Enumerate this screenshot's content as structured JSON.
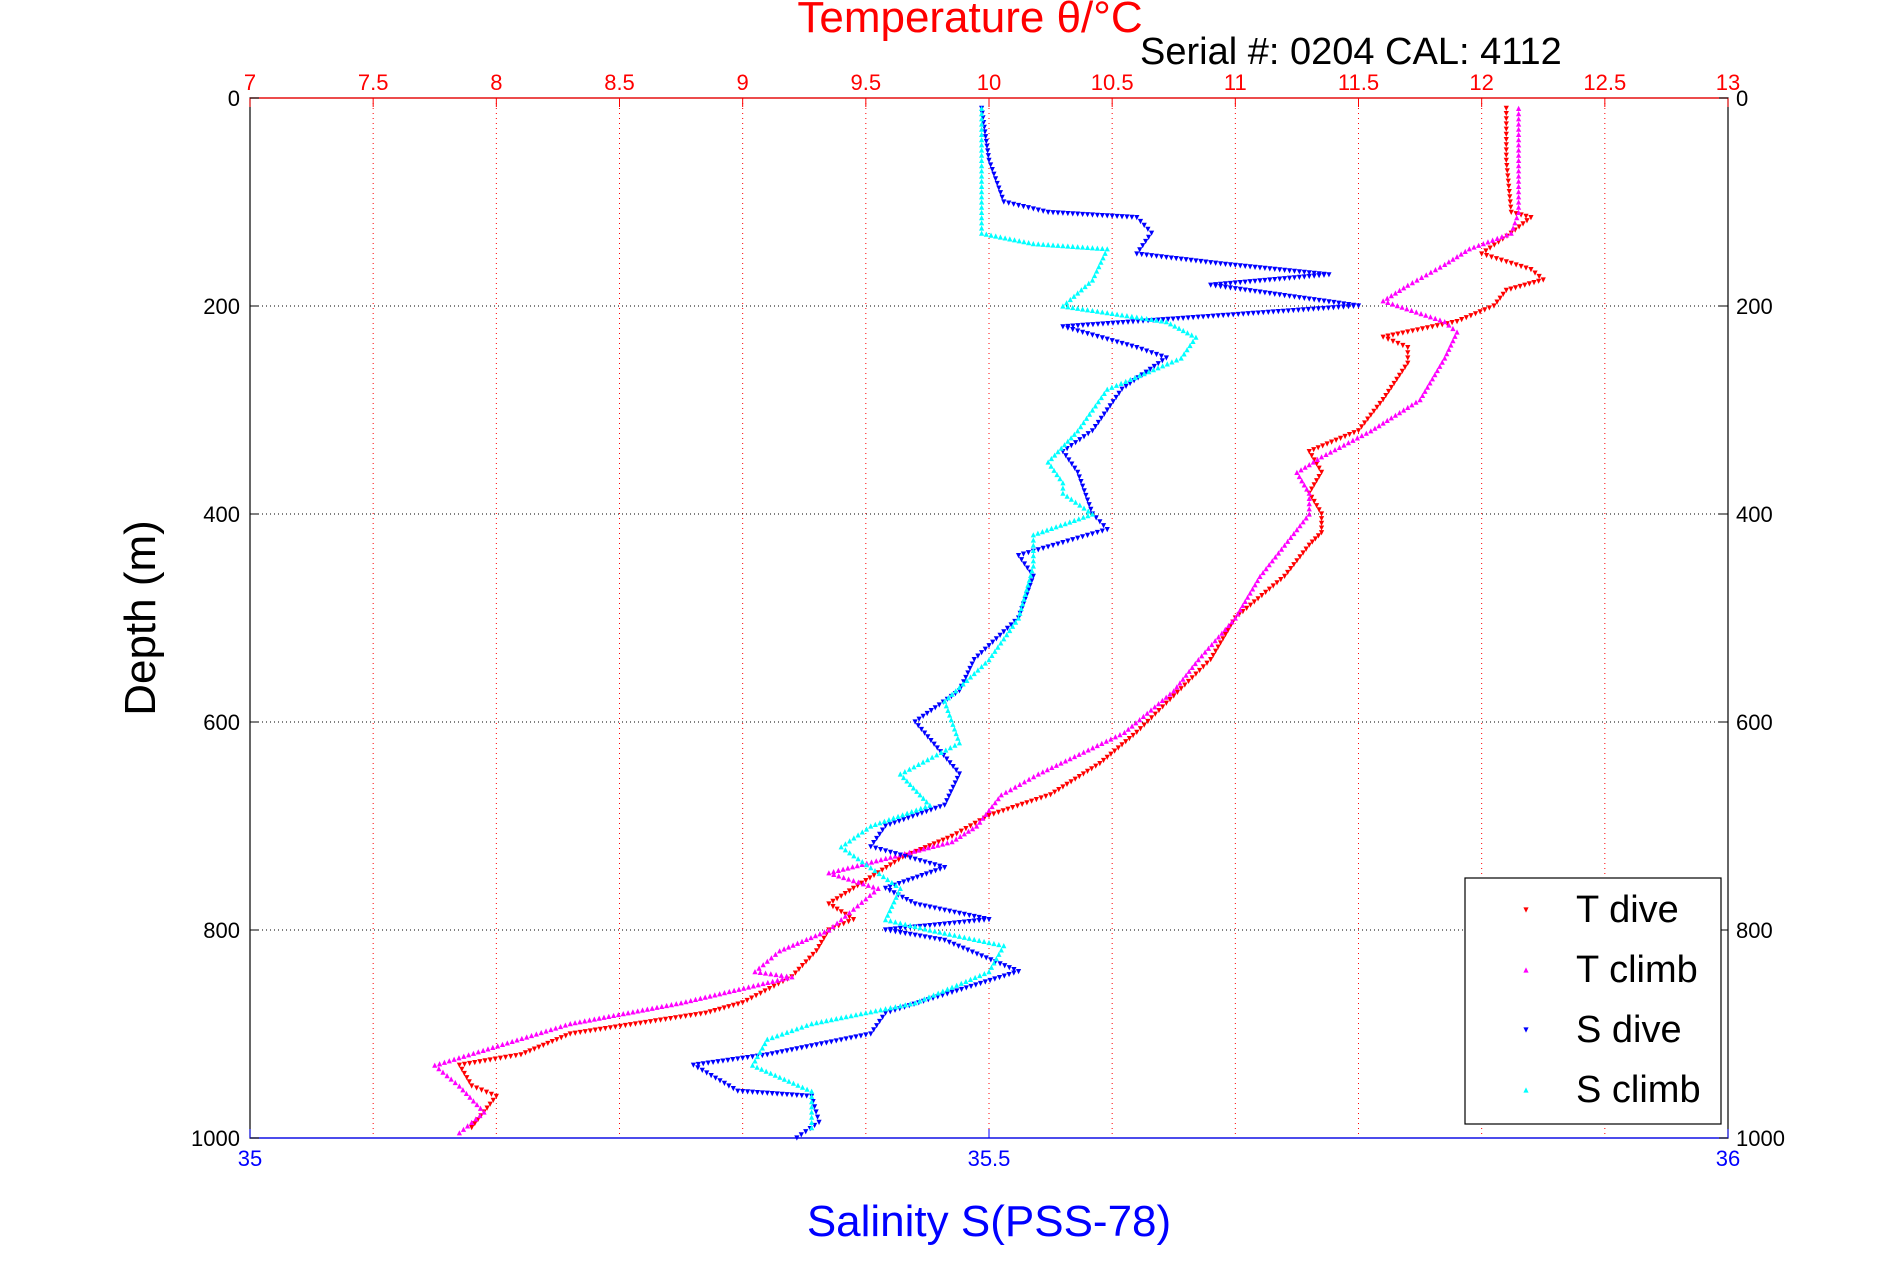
{
  "chart_data": {
    "type": "scatter",
    "title_top": "Temperature θ/°C",
    "serial_text": "Serial #: 0204   CAL: 4112",
    "ylabel": "Depth (m)",
    "xlabel_bottom": "Salinity S(PSS-78)",
    "ylim": [
      0,
      1000
    ],
    "y_reversed": true,
    "y_ticks": [
      "0",
      "200",
      "400",
      "600",
      "800",
      "1000"
    ],
    "temperature_axis": {
      "position": "top",
      "lim": [
        7,
        13
      ],
      "ticks": [
        "7",
        "7.5",
        "8",
        "8.5",
        "9",
        "9.5",
        "10",
        "10.5",
        "11",
        "11.5",
        "12",
        "12.5",
        "13"
      ],
      "color": "#ff0000"
    },
    "salinity_axis": {
      "position": "bottom",
      "lim": [
        35,
        36
      ],
      "ticks": [
        "35",
        "35.5",
        "36"
      ],
      "color": "#0000ff"
    },
    "grid": true,
    "legend_position": "bottom-right",
    "series": [
      {
        "name": "T dive",
        "axis": "temperature",
        "color": "#ff0000",
        "marker": "triangle-down",
        "points": [
          [
            12.1,
            10
          ],
          [
            12.1,
            60
          ],
          [
            12.12,
            110
          ],
          [
            12.2,
            115
          ],
          [
            12.12,
            130
          ],
          [
            12.0,
            150
          ],
          [
            12.2,
            165
          ],
          [
            12.25,
            175
          ],
          [
            12.1,
            185
          ],
          [
            12.05,
            200
          ],
          [
            11.9,
            215
          ],
          [
            11.6,
            230
          ],
          [
            11.7,
            240
          ],
          [
            11.7,
            255
          ],
          [
            11.6,
            290
          ],
          [
            11.5,
            320
          ],
          [
            11.3,
            340
          ],
          [
            11.35,
            360
          ],
          [
            11.3,
            380
          ],
          [
            11.35,
            400
          ],
          [
            11.35,
            418
          ],
          [
            11.3,
            430
          ],
          [
            11.2,
            460
          ],
          [
            11.0,
            500
          ],
          [
            10.9,
            540
          ],
          [
            10.75,
            575
          ],
          [
            10.6,
            610
          ],
          [
            10.45,
            640
          ],
          [
            10.25,
            670
          ],
          [
            10.0,
            690
          ],
          [
            9.85,
            710
          ],
          [
            9.65,
            730
          ],
          [
            9.45,
            760
          ],
          [
            9.35,
            775
          ],
          [
            9.45,
            790
          ],
          [
            9.35,
            800
          ],
          [
            9.3,
            820
          ],
          [
            9.2,
            845
          ],
          [
            9.0,
            870
          ],
          [
            8.85,
            880
          ],
          [
            8.3,
            900
          ],
          [
            8.1,
            920
          ],
          [
            7.85,
            930
          ],
          [
            7.9,
            950
          ],
          [
            8.0,
            960
          ],
          [
            7.9,
            990
          ]
        ]
      },
      {
        "name": "T climb",
        "axis": "temperature",
        "color": "#ff00ff",
        "marker": "triangle-up",
        "points": [
          [
            12.15,
            10
          ],
          [
            12.15,
            60
          ],
          [
            12.15,
            110
          ],
          [
            12.12,
            130
          ],
          [
            11.95,
            145
          ],
          [
            11.85,
            160
          ],
          [
            11.7,
            180
          ],
          [
            11.6,
            195
          ],
          [
            11.85,
            215
          ],
          [
            11.9,
            225
          ],
          [
            11.85,
            250
          ],
          [
            11.75,
            290
          ],
          [
            11.55,
            320
          ],
          [
            11.35,
            345
          ],
          [
            11.25,
            360
          ],
          [
            11.3,
            380
          ],
          [
            11.3,
            400
          ],
          [
            11.2,
            430
          ],
          [
            11.1,
            460
          ],
          [
            11.0,
            500
          ],
          [
            10.85,
            540
          ],
          [
            10.75,
            570
          ],
          [
            10.55,
            610
          ],
          [
            10.2,
            650
          ],
          [
            10.05,
            670
          ],
          [
            9.95,
            700
          ],
          [
            9.85,
            715
          ],
          [
            9.6,
            730
          ],
          [
            9.35,
            745
          ],
          [
            9.55,
            760
          ],
          [
            9.45,
            780
          ],
          [
            9.35,
            800
          ],
          [
            9.15,
            820
          ],
          [
            9.05,
            840
          ],
          [
            9.2,
            845
          ],
          [
            8.75,
            870
          ],
          [
            8.3,
            890
          ],
          [
            7.75,
            930
          ],
          [
            7.85,
            950
          ],
          [
            7.95,
            975
          ],
          [
            7.85,
            995
          ]
        ]
      },
      {
        "name": "S dive",
        "axis": "salinity",
        "color": "#0000ff",
        "marker": "triangle-down",
        "points": [
          [
            35.495,
            10
          ],
          [
            35.5,
            60
          ],
          [
            35.51,
            100
          ],
          [
            35.54,
            110
          ],
          [
            35.6,
            115
          ],
          [
            35.61,
            130
          ],
          [
            35.6,
            150
          ],
          [
            35.66,
            160
          ],
          [
            35.73,
            170
          ],
          [
            35.65,
            180
          ],
          [
            35.75,
            200
          ],
          [
            35.55,
            220
          ],
          [
            35.6,
            240
          ],
          [
            35.62,
            250
          ],
          [
            35.59,
            280
          ],
          [
            35.57,
            320
          ],
          [
            35.55,
            340
          ],
          [
            35.56,
            360
          ],
          [
            35.57,
            400
          ],
          [
            35.58,
            415
          ],
          [
            35.52,
            440
          ],
          [
            35.53,
            460
          ],
          [
            35.52,
            500
          ],
          [
            35.49,
            540
          ],
          [
            35.48,
            570
          ],
          [
            35.45,
            600
          ],
          [
            35.48,
            650
          ],
          [
            35.47,
            680
          ],
          [
            35.43,
            700
          ],
          [
            35.42,
            720
          ],
          [
            35.47,
            740
          ],
          [
            35.43,
            760
          ],
          [
            35.45,
            775
          ],
          [
            35.5,
            790
          ],
          [
            35.43,
            800
          ],
          [
            35.47,
            810
          ],
          [
            35.52,
            840
          ],
          [
            35.43,
            880
          ],
          [
            35.42,
            900
          ],
          [
            35.35,
            920
          ],
          [
            35.3,
            930
          ],
          [
            35.33,
            955
          ],
          [
            35.38,
            960
          ],
          [
            35.385,
            985
          ],
          [
            35.37,
            1000
          ]
        ]
      },
      {
        "name": "S climb",
        "axis": "salinity",
        "color": "#00ffff",
        "marker": "triangle-up",
        "points": [
          [
            35.495,
            10
          ],
          [
            35.495,
            60
          ],
          [
            35.495,
            100
          ],
          [
            35.495,
            130
          ],
          [
            35.53,
            140
          ],
          [
            35.58,
            145
          ],
          [
            35.57,
            175
          ],
          [
            35.55,
            200
          ],
          [
            35.62,
            215
          ],
          [
            35.64,
            230
          ],
          [
            35.63,
            250
          ],
          [
            35.58,
            280
          ],
          [
            35.56,
            320
          ],
          [
            35.54,
            350
          ],
          [
            35.55,
            370
          ],
          [
            35.55,
            380
          ],
          [
            35.57,
            400
          ],
          [
            35.53,
            420
          ],
          [
            35.53,
            450
          ],
          [
            35.52,
            500
          ],
          [
            35.5,
            540
          ],
          [
            35.47,
            580
          ],
          [
            35.48,
            620
          ],
          [
            35.44,
            650
          ],
          [
            35.46,
            680
          ],
          [
            35.42,
            700
          ],
          [
            35.4,
            720
          ],
          [
            35.42,
            740
          ],
          [
            35.44,
            760
          ],
          [
            35.43,
            790
          ],
          [
            35.46,
            800
          ],
          [
            35.51,
            815
          ],
          [
            35.5,
            840
          ],
          [
            35.45,
            870
          ],
          [
            35.38,
            890
          ],
          [
            35.35,
            905
          ],
          [
            35.34,
            930
          ],
          [
            35.38,
            955
          ],
          [
            35.38,
            975
          ],
          [
            35.38,
            990
          ]
        ]
      }
    ]
  }
}
